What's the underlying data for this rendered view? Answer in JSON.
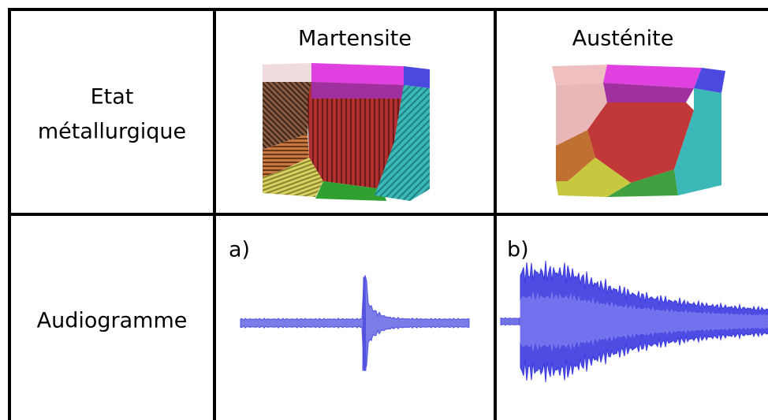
{
  "header": {
    "columns": [
      "Martensite",
      "Austénite"
    ]
  },
  "rows": [
    {
      "label": [
        "Etat",
        "métallurgique"
      ]
    },
    {
      "label": [
        "Audiogramme"
      ],
      "panels": [
        "a)",
        "b)"
      ]
    }
  ]
}
